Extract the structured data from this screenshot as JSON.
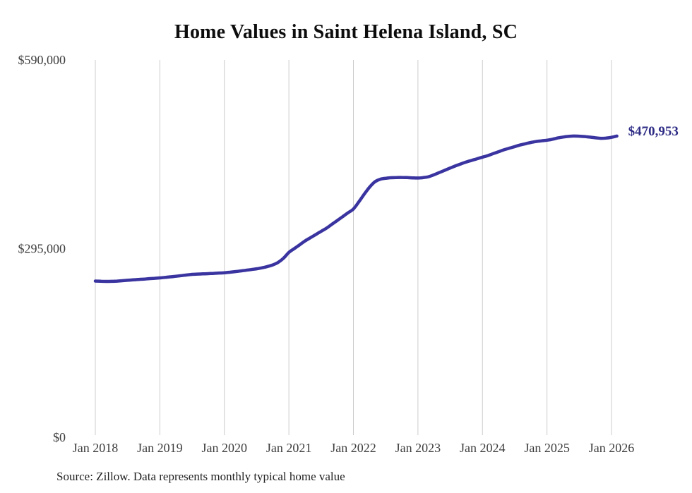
{
  "page": {
    "title": "Home Values in Saint Helena Island, SC",
    "source_note": "Source: Zillow. Data represents monthly typical home value"
  },
  "colors": {
    "line": "#3a34a0",
    "end_label": "#2e2c85",
    "grid": "#cccccc",
    "tick_text": "#3d3d3d",
    "title_text": "#0d0d0d"
  },
  "chart_data": {
    "type": "line",
    "title": "Home Values in Saint Helena Island, SC",
    "xlabel": "",
    "ylabel": "",
    "ylim": [
      0,
      590000
    ],
    "y_ticks": [
      0,
      295000,
      590000
    ],
    "y_tick_labels": [
      "$0",
      "$295,000",
      "$590,000"
    ],
    "x_tick_labels": [
      "Jan 2018",
      "Jan 2019",
      "Jan 2020",
      "Jan 2021",
      "Jan 2022",
      "Jan 2023",
      "Jan 2024",
      "Jan 2025",
      "Jan 2026"
    ],
    "grid": "vertical-only",
    "legend": "none",
    "end_label": "$470,953",
    "final_value": 470953,
    "series": [
      {
        "name": "Monthly typical home value",
        "x": [
          "2018-01",
          "2018-02",
          "2018-03",
          "2018-04",
          "2018-05",
          "2018-06",
          "2018-07",
          "2018-08",
          "2018-09",
          "2018-10",
          "2018-11",
          "2018-12",
          "2019-01",
          "2019-02",
          "2019-03",
          "2019-04",
          "2019-05",
          "2019-06",
          "2019-07",
          "2019-08",
          "2019-09",
          "2019-10",
          "2019-11",
          "2019-12",
          "2020-01",
          "2020-02",
          "2020-03",
          "2020-04",
          "2020-05",
          "2020-06",
          "2020-07",
          "2020-08",
          "2020-09",
          "2020-10",
          "2020-11",
          "2020-12",
          "2021-01",
          "2021-02",
          "2021-03",
          "2021-04",
          "2021-05",
          "2021-06",
          "2021-07",
          "2021-08",
          "2021-09",
          "2021-10",
          "2021-11",
          "2021-12",
          "2022-01",
          "2022-02",
          "2022-03",
          "2022-04",
          "2022-05",
          "2022-06",
          "2022-07",
          "2022-08",
          "2022-09",
          "2022-10",
          "2022-11",
          "2022-12",
          "2023-01",
          "2023-02",
          "2023-03",
          "2023-04",
          "2023-05",
          "2023-06",
          "2023-07",
          "2023-08",
          "2023-09",
          "2023-10",
          "2023-11",
          "2023-12",
          "2024-01",
          "2024-02",
          "2024-03",
          "2024-04",
          "2024-05",
          "2024-06",
          "2024-07",
          "2024-08",
          "2024-09",
          "2024-10",
          "2024-11",
          "2024-12",
          "2025-01",
          "2025-02",
          "2025-03",
          "2025-04",
          "2025-05",
          "2025-06",
          "2025-07",
          "2025-08",
          "2025-09",
          "2025-10",
          "2025-11",
          "2025-12",
          "2026-01",
          "2026-02"
        ],
        "values": [
          244300,
          243900,
          243700,
          243800,
          244200,
          244800,
          245500,
          246100,
          246700,
          247300,
          248000,
          248600,
          249200,
          250000,
          250900,
          251800,
          252800,
          253800,
          254700,
          255200,
          255500,
          255800,
          256300,
          256800,
          257300,
          258100,
          259000,
          260000,
          261100,
          262300,
          263500,
          265000,
          267000,
          269500,
          273500,
          280000,
          289000,
          295000,
          301000,
          307000,
          312000,
          317000,
          322000,
          327000,
          333000,
          339000,
          345000,
          351000,
          357000,
          368000,
          380000,
          391000,
          399500,
          403500,
          405000,
          405800,
          406200,
          406300,
          406000,
          405600,
          405400,
          406000,
          407500,
          410500,
          414000,
          417500,
          421000,
          424500,
          427500,
          430500,
          433000,
          435500,
          438000,
          440500,
          443500,
          446500,
          449500,
          452000,
          454500,
          457000,
          459000,
          461000,
          462500,
          463500,
          464500,
          466000,
          468000,
          469500,
          470500,
          471000,
          470800,
          470200,
          469300,
          468300,
          467500,
          467800,
          469000,
          470953
        ]
      }
    ]
  }
}
